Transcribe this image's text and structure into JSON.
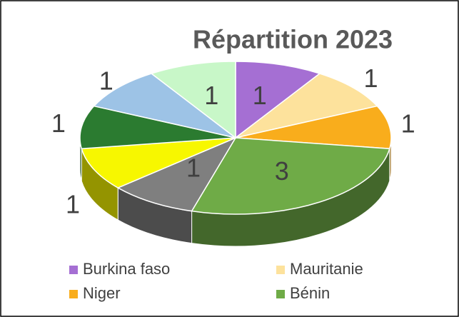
{
  "chart_data": {
    "type": "pie",
    "title": "Répartition 2023",
    "categories": [
      "Burkina faso",
      "Mauritanie",
      "Niger",
      "Bénin",
      null,
      null,
      null,
      null,
      null
    ],
    "values": [
      1,
      1,
      1,
      3,
      1,
      1,
      1,
      1,
      1
    ],
    "colors": [
      "#a56fd3",
      "#fde29c",
      "#f9ad1c",
      "#6fab47",
      "#7f7f7f",
      "#f7f700",
      "#2b7b30",
      "#9dc3e6",
      "#c8f7c8"
    ],
    "legend": "bottom"
  }
}
